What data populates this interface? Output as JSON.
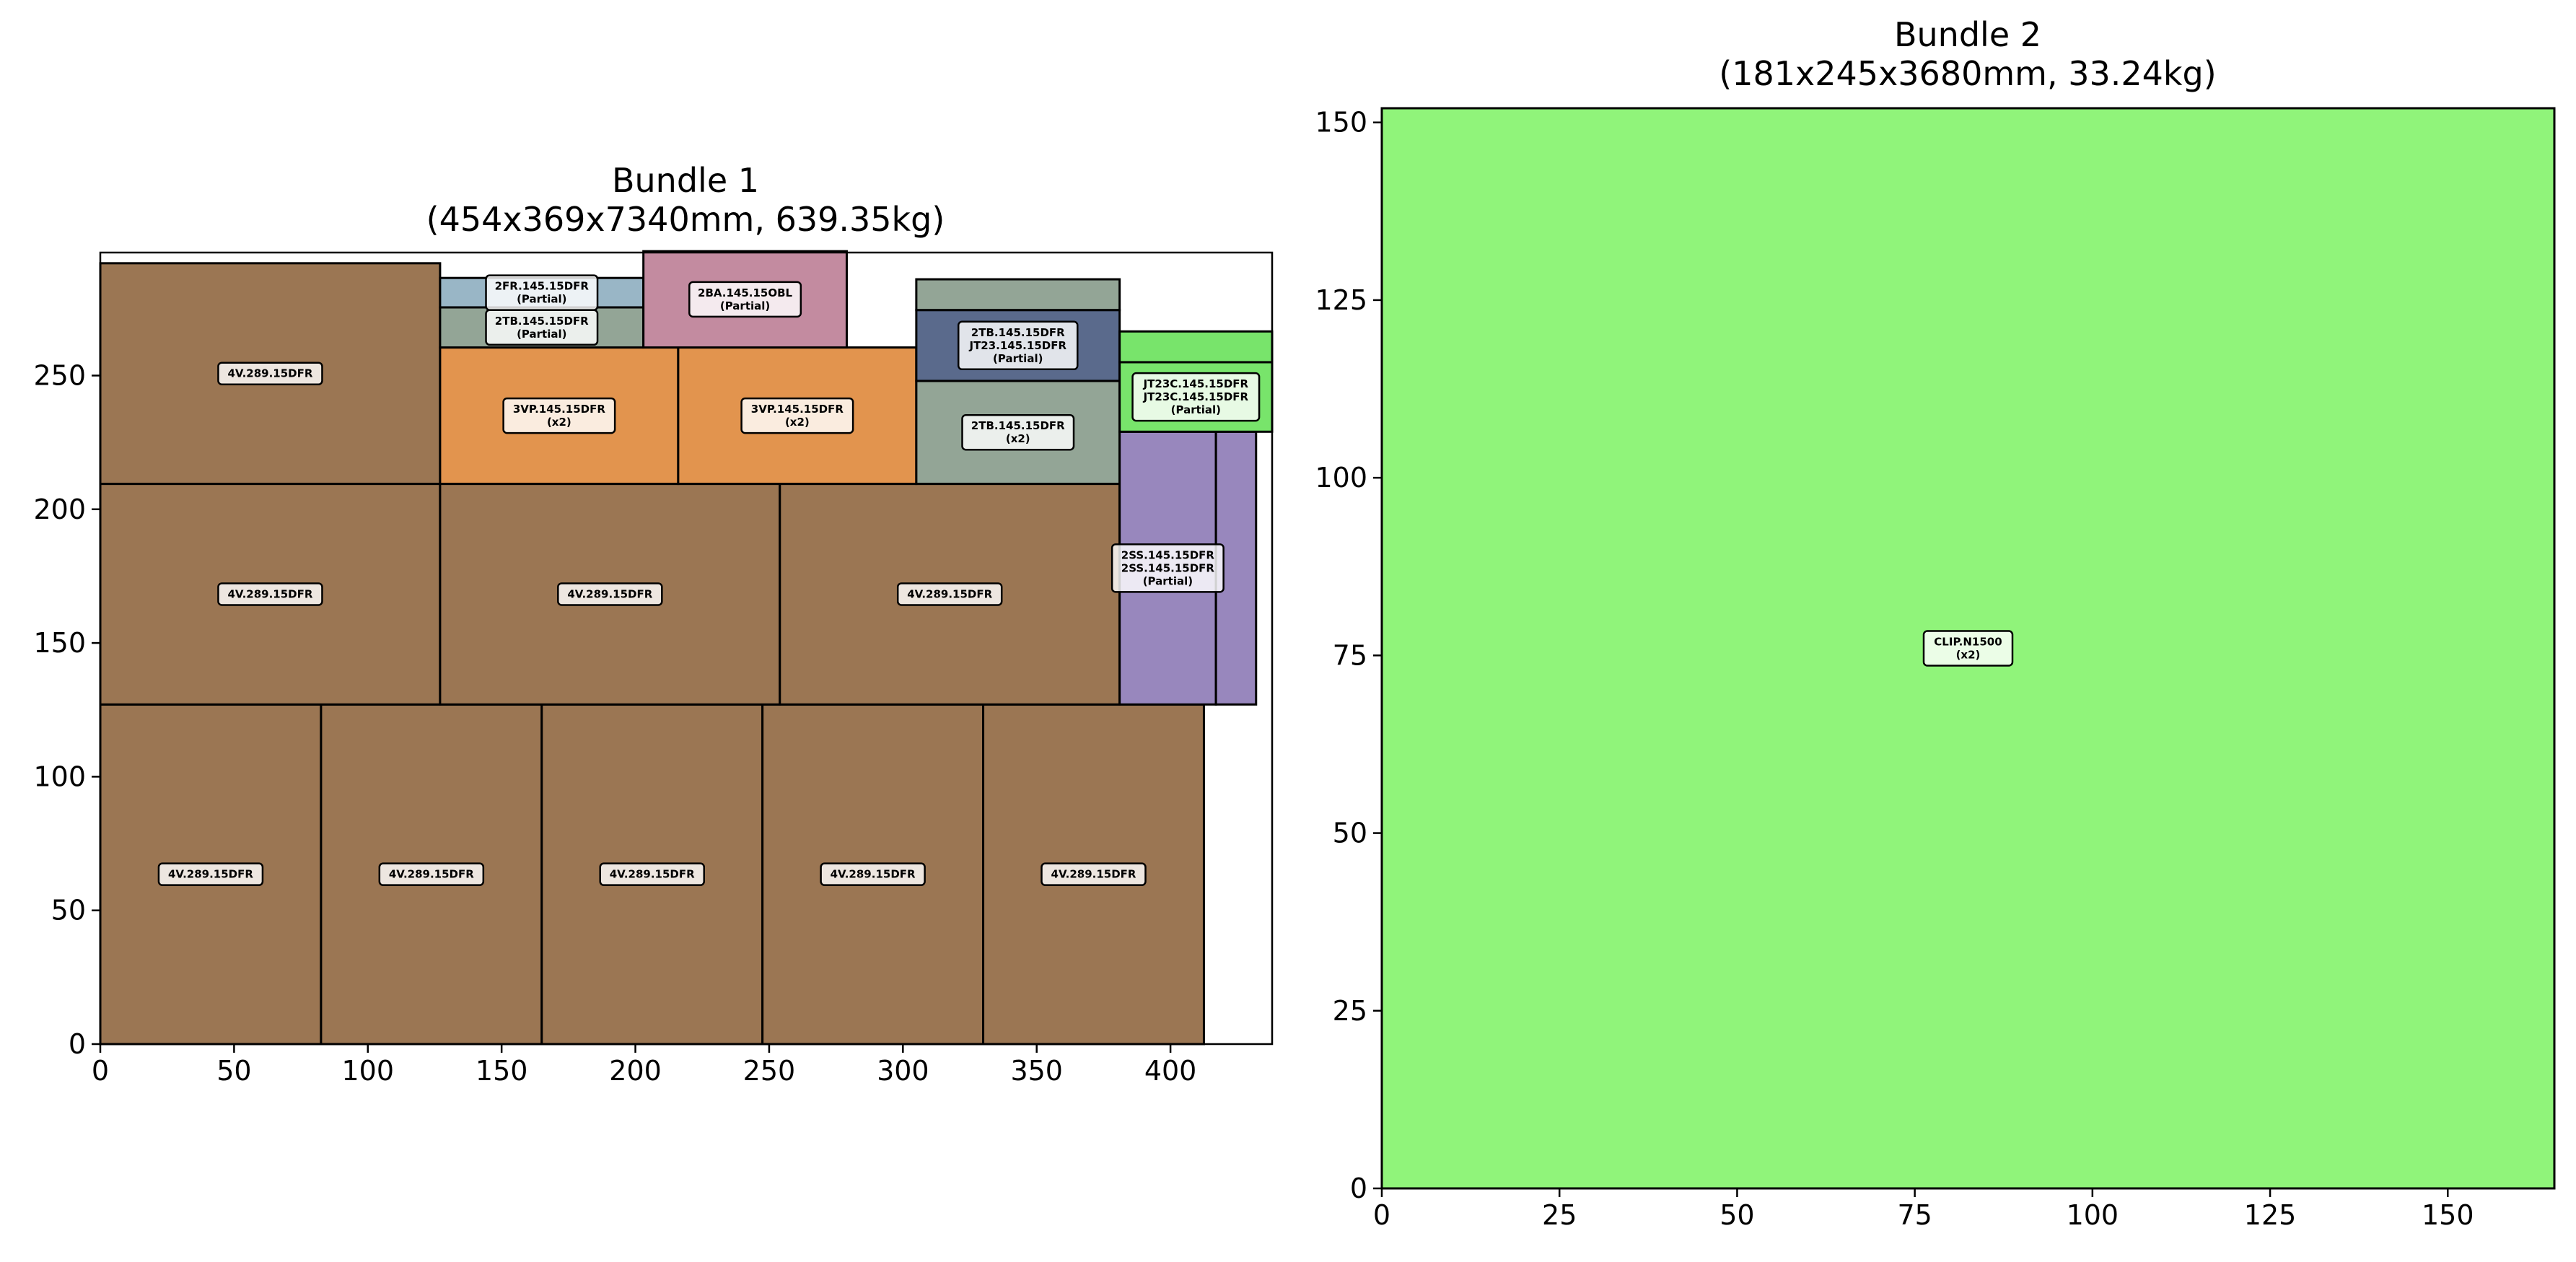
{
  "chart_data": [
    {
      "type": "rectangle-packing",
      "title": "Bundle 1",
      "subtitle": "(454x369x7340mm, 639.35kg)",
      "xlim": [
        0,
        438
      ],
      "ylim": [
        0,
        296
      ],
      "xticks": [
        0,
        50,
        100,
        150,
        200,
        250,
        300,
        350,
        400
      ],
      "yticks": [
        0,
        50,
        100,
        150,
        200,
        250
      ],
      "grid": false,
      "rects": [
        {
          "x": 0,
          "y": 0,
          "w": 82.5,
          "h": 127,
          "color": "#9b7653",
          "lines": [
            "4V.289.15DFR"
          ]
        },
        {
          "x": 82.5,
          "y": 0,
          "w": 82.5,
          "h": 127,
          "color": "#9b7653",
          "lines": [
            "4V.289.15DFR"
          ]
        },
        {
          "x": 165,
          "y": 0,
          "w": 82.5,
          "h": 127,
          "color": "#9b7653",
          "lines": [
            "4V.289.15DFR"
          ]
        },
        {
          "x": 247.5,
          "y": 0,
          "w": 82.5,
          "h": 127,
          "color": "#9b7653",
          "lines": [
            "4V.289.15DFR"
          ]
        },
        {
          "x": 330,
          "y": 0,
          "w": 82.5,
          "h": 127,
          "color": "#9b7653",
          "lines": [
            "4V.289.15DFR"
          ]
        },
        {
          "x": 0,
          "y": 127,
          "w": 127,
          "h": 82.5,
          "color": "#9b7653",
          "lines": [
            "4V.289.15DFR"
          ]
        },
        {
          "x": 127,
          "y": 127,
          "w": 127,
          "h": 82.5,
          "color": "#9b7653",
          "lines": [
            "4V.289.15DFR"
          ]
        },
        {
          "x": 254,
          "y": 127,
          "w": 127,
          "h": 82.5,
          "color": "#9b7653",
          "lines": [
            "4V.289.15DFR"
          ]
        },
        {
          "x": 0,
          "y": 209.5,
          "w": 127,
          "h": 82.5,
          "color": "#9b7653",
          "lines": [
            "4V.289.15DFR"
          ]
        },
        {
          "x": 127,
          "y": 209.5,
          "w": 89,
          "h": 51,
          "color": "#e2944e",
          "lines": [
            "3VP.145.15DFR",
            "(x2)"
          ]
        },
        {
          "x": 216,
          "y": 209.5,
          "w": 89,
          "h": 51,
          "color": "#e2944e",
          "lines": [
            "3VP.145.15DFR",
            "(x2)"
          ]
        },
        {
          "x": 127,
          "y": 260.5,
          "w": 76,
          "h": 15,
          "color": "#93a596",
          "lines": [
            "2TB.145.15DFR",
            "(Partial)"
          ]
        },
        {
          "x": 127,
          "y": 275.5,
          "w": 76,
          "h": 11,
          "color": "#99b6c6",
          "lines": [
            "2FR.145.15DFR",
            "(Partial)"
          ]
        },
        {
          "x": 203,
          "y": 260.5,
          "w": 76,
          "h": 36,
          "color": "#c38ba0",
          "lines": [
            "2BA.145.15OBL",
            "(Partial)"
          ]
        },
        {
          "x": 305,
          "y": 209.5,
          "w": 76,
          "h": 38.5,
          "color": "#93a596",
          "lines": [
            "2TB.145.15DFR",
            "(x2)"
          ]
        },
        {
          "x": 305,
          "y": 248,
          "w": 76,
          "h": 26.5,
          "color": "#5a6a8c",
          "lines": [
            "2TB.145.15DFR",
            "JT23.145.15DFR",
            "(Partial)"
          ]
        },
        {
          "x": 305,
          "y": 274.5,
          "w": 76,
          "h": 11.5,
          "color": "#93a596",
          "lines": []
        },
        {
          "x": 381,
          "y": 127,
          "w": 36,
          "h": 102,
          "color": "#9887bd",
          "lines": [
            "2SS.145.15DFR",
            "2SS.145.15DFR",
            "(Partial)"
          ]
        },
        {
          "x": 417,
          "y": 127,
          "w": 15,
          "h": 102,
          "color": "#9887bd",
          "lines": []
        },
        {
          "x": 381,
          "y": 229,
          "w": 57,
          "h": 26,
          "color": "#78e46b",
          "lines": [
            "JT23C.145.15DFR",
            "JT23C.145.15DFR",
            "(Partial)"
          ]
        },
        {
          "x": 381,
          "y": 255,
          "w": 57,
          "h": 11.5,
          "color": "#78e46b",
          "lines": []
        }
      ]
    },
    {
      "type": "rectangle-packing",
      "title": "Bundle 2",
      "subtitle": "(181x245x3680mm, 33.24kg)",
      "xlim": [
        0,
        165
      ],
      "ylim": [
        0,
        152
      ],
      "xticks": [
        0,
        25,
        50,
        75,
        100,
        125,
        150
      ],
      "yticks": [
        0,
        25,
        50,
        75,
        100,
        125,
        150
      ],
      "grid": false,
      "rects": [
        {
          "x": 0,
          "y": 0,
          "w": 165,
          "h": 152,
          "color": "#90f47a",
          "lines": [
            "CLIP.N1500",
            "(x2)"
          ]
        }
      ]
    }
  ]
}
